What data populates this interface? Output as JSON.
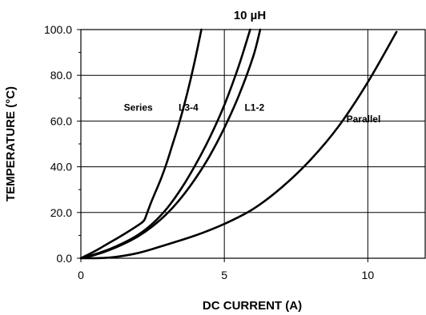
{
  "chart_data": {
    "type": "line",
    "title": "10 µH",
    "xlabel": "DC CURRENT (A)",
    "ylabel": "TEMPERATURE (°C)",
    "xlim": [
      0,
      12
    ],
    "ylim": [
      0,
      100
    ],
    "x_ticks": [
      0,
      5,
      10
    ],
    "x_tick_labels": [
      "0",
      "5",
      "10"
    ],
    "y_ticks": [
      0,
      20,
      40,
      60,
      80,
      100
    ],
    "y_tick_labels": [
      "0.0",
      "20.0",
      "40.0",
      "60.0",
      "80.0",
      "100.0"
    ],
    "grid": true,
    "series": [
      {
        "name": "Series",
        "x": [
          0,
          0.5,
          1.0,
          1.5,
          2.0,
          2.2,
          2.3,
          2.45,
          2.6,
          2.8,
          3.0,
          3.2,
          3.4,
          3.6,
          3.8,
          4.0,
          4.2
        ],
        "y": [
          0,
          3.2,
          6.8,
          10.5,
          14.5,
          16.5,
          19.5,
          24.5,
          29,
          35,
          42,
          50,
          58,
          67,
          77,
          88,
          100
        ]
      },
      {
        "name": "L3-4",
        "x": [
          0,
          0.5,
          1.0,
          1.5,
          2.0,
          2.5,
          3.0,
          3.5,
          4.0,
          4.5,
          5.0,
          5.5,
          5.9
        ],
        "y": [
          0,
          1.8,
          4.0,
          6.8,
          10.3,
          15.2,
          21.8,
          30.5,
          41,
          53,
          67,
          84,
          100
        ]
      },
      {
        "name": "L1-2",
        "x": [
          0,
          0.5,
          1.0,
          1.5,
          2.0,
          2.5,
          3.0,
          3.5,
          4.0,
          4.5,
          5.0,
          5.5,
          6.0,
          6.25
        ],
        "y": [
          0,
          1.5,
          3.6,
          6.3,
          9.6,
          14,
          19.5,
          26.5,
          35,
          45,
          57,
          71,
          88,
          100
        ]
      },
      {
        "name": "Parallel",
        "x": [
          0,
          1.0,
          2.0,
          3.0,
          4.0,
          5.0,
          6.0,
          7.0,
          8.0,
          9.0,
          10.0,
          11.0
        ],
        "y": [
          0,
          0.3,
          2.3,
          6.0,
          10.0,
          15.0,
          21.5,
          31,
          43,
          58,
          77,
          99
        ]
      }
    ],
    "annotations": [
      {
        "text": "Series",
        "x": 2.0,
        "y": 64.5
      },
      {
        "text": "L3-4",
        "x": 3.75,
        "y": 64.5
      },
      {
        "text": "L1-2",
        "x": 6.05,
        "y": 64.5
      },
      {
        "text": "Parallel",
        "x": 9.85,
        "y": 59.5
      }
    ]
  }
}
